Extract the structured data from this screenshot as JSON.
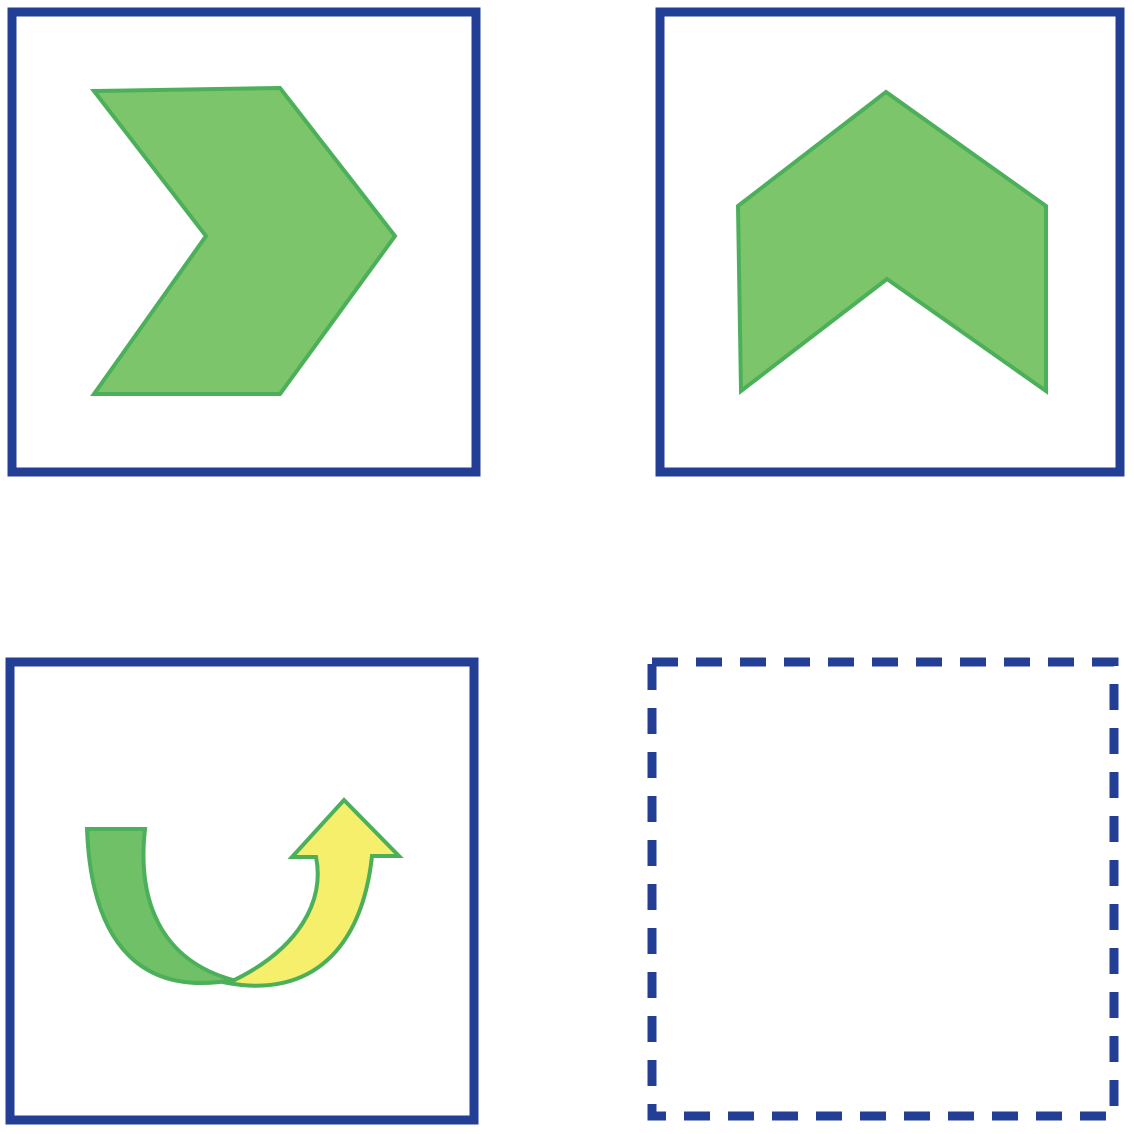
{
  "colors": {
    "frame": "#233f95",
    "background": "#ffffff",
    "shape_fill": "#7cc56a",
    "shape_stroke": "#4cb05a",
    "arrow_green": "#6fc067",
    "arrow_yellow": "#f6ef6c"
  },
  "panels": [
    {
      "role": "example",
      "content": "chevron-right-shape",
      "frame_style": "solid"
    },
    {
      "role": "example",
      "content": "chevron-up-shape",
      "frame_style": "solid"
    },
    {
      "role": "transformation",
      "content": "curved-arrow-rotate-icon",
      "frame_style": "solid"
    },
    {
      "role": "answer",
      "content": "empty",
      "frame_style": "dashed"
    }
  ]
}
